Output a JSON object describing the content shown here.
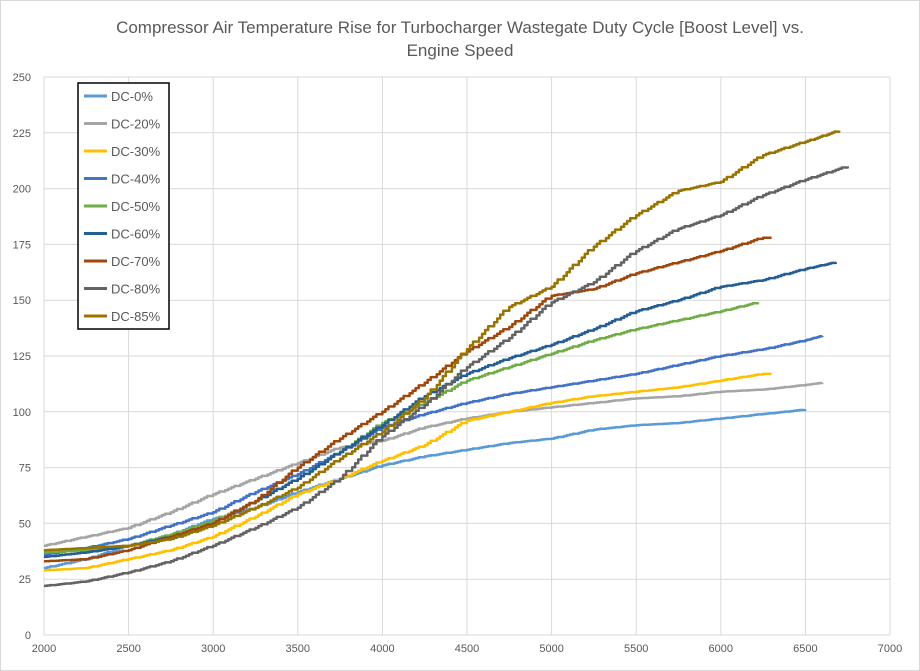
{
  "chart_data": {
    "type": "line",
    "title_lines": [
      "Compressor Air Temperature Rise for Turbocharger Wastegate Duty Cycle [Boost Level] vs.",
      "Engine Speed"
    ],
    "xlabel": "",
    "ylabel": "",
    "xlim": [
      2000,
      7000
    ],
    "ylim": [
      0,
      250
    ],
    "x_ticks": [
      2000,
      2500,
      3000,
      3500,
      4000,
      4500,
      5000,
      5500,
      6000,
      6500,
      7000
    ],
    "y_ticks": [
      0,
      25,
      50,
      75,
      100,
      125,
      150,
      175,
      200,
      225,
      250
    ],
    "grid": true,
    "legend_placement": "top-left",
    "series": [
      {
        "name": "DC-0%",
        "color": "#5B9BD5",
        "points": [
          [
            2000,
            30
          ],
          [
            2250,
            34
          ],
          [
            2500,
            40
          ],
          [
            2750,
            45
          ],
          [
            3000,
            52
          ],
          [
            3250,
            57
          ],
          [
            3500,
            64
          ],
          [
            3750,
            70
          ],
          [
            4000,
            76
          ],
          [
            4250,
            80
          ],
          [
            4500,
            83
          ],
          [
            4750,
            86
          ],
          [
            5000,
            88
          ],
          [
            5250,
            92
          ],
          [
            5500,
            94
          ],
          [
            5750,
            95
          ],
          [
            6000,
            97
          ],
          [
            6250,
            99
          ],
          [
            6500,
            101
          ]
        ]
      },
      {
        "name": "DC-20%",
        "color": "#A5A5A5",
        "points": [
          [
            2000,
            40
          ],
          [
            2250,
            44
          ],
          [
            2500,
            48
          ],
          [
            2750,
            55
          ],
          [
            3000,
            63
          ],
          [
            3250,
            70
          ],
          [
            3500,
            77
          ],
          [
            3750,
            84
          ],
          [
            4000,
            87
          ],
          [
            4250,
            93
          ],
          [
            4500,
            97
          ],
          [
            4750,
            100
          ],
          [
            5000,
            102
          ],
          [
            5250,
            104
          ],
          [
            5500,
            106
          ],
          [
            5750,
            107
          ],
          [
            6000,
            109
          ],
          [
            6250,
            110
          ],
          [
            6500,
            112
          ],
          [
            6600,
            113
          ]
        ]
      },
      {
        "name": "DC-30%",
        "color": "#FFC000",
        "points": [
          [
            2000,
            29
          ],
          [
            2250,
            30
          ],
          [
            2500,
            34
          ],
          [
            2750,
            38
          ],
          [
            3000,
            44
          ],
          [
            3250,
            53
          ],
          [
            3500,
            63
          ],
          [
            3750,
            70
          ],
          [
            4000,
            78
          ],
          [
            4250,
            85
          ],
          [
            4500,
            96
          ],
          [
            4750,
            100
          ],
          [
            5000,
            104
          ],
          [
            5250,
            107
          ],
          [
            5500,
            109
          ],
          [
            5750,
            111
          ],
          [
            6000,
            114
          ],
          [
            6250,
            117
          ],
          [
            6300,
            117
          ]
        ]
      },
      {
        "name": "DC-40%",
        "color": "#4472C4",
        "points": [
          [
            2000,
            36
          ],
          [
            2250,
            39
          ],
          [
            2500,
            43
          ],
          [
            2750,
            49
          ],
          [
            3000,
            55
          ],
          [
            3250,
            64
          ],
          [
            3500,
            72
          ],
          [
            3750,
            82
          ],
          [
            4000,
            93
          ],
          [
            4250,
            99
          ],
          [
            4500,
            104
          ],
          [
            4750,
            108
          ],
          [
            5000,
            111
          ],
          [
            5250,
            114
          ],
          [
            5500,
            117
          ],
          [
            5750,
            121
          ],
          [
            6000,
            125
          ],
          [
            6250,
            128
          ],
          [
            6500,
            132
          ],
          [
            6600,
            134
          ]
        ]
      },
      {
        "name": "DC-50%",
        "color": "#70AD47",
        "points": [
          [
            2000,
            37
          ],
          [
            2250,
            38
          ],
          [
            2500,
            40
          ],
          [
            2750,
            45
          ],
          [
            3000,
            51
          ],
          [
            3250,
            60
          ],
          [
            3500,
            70
          ],
          [
            3750,
            82
          ],
          [
            4000,
            95
          ],
          [
            4250,
            104
          ],
          [
            4500,
            114
          ],
          [
            4750,
            120
          ],
          [
            5000,
            126
          ],
          [
            5250,
            132
          ],
          [
            5500,
            137
          ],
          [
            5750,
            141
          ],
          [
            6000,
            145
          ],
          [
            6220,
            149
          ]
        ]
      },
      {
        "name": "DC-60%",
        "color": "#255E91",
        "points": [
          [
            2000,
            35
          ],
          [
            2250,
            37
          ],
          [
            2500,
            40
          ],
          [
            2750,
            44
          ],
          [
            3000,
            50
          ],
          [
            3250,
            60
          ],
          [
            3500,
            70
          ],
          [
            3750,
            82
          ],
          [
            4000,
            94
          ],
          [
            4250,
            107
          ],
          [
            4500,
            117
          ],
          [
            4750,
            124
          ],
          [
            5000,
            130
          ],
          [
            5250,
            137
          ],
          [
            5500,
            145
          ],
          [
            5750,
            150
          ],
          [
            6000,
            156
          ],
          [
            6250,
            159
          ],
          [
            6500,
            164
          ],
          [
            6680,
            167
          ]
        ]
      },
      {
        "name": "DC-70%",
        "color": "#9E480E",
        "points": [
          [
            2000,
            33
          ],
          [
            2250,
            34
          ],
          [
            2500,
            38
          ],
          [
            2750,
            44
          ],
          [
            3000,
            50
          ],
          [
            3250,
            60
          ],
          [
            3500,
            75
          ],
          [
            3750,
            88
          ],
          [
            4000,
            100
          ],
          [
            4250,
            113
          ],
          [
            4500,
            127
          ],
          [
            4750,
            138
          ],
          [
            5000,
            152
          ],
          [
            5250,
            155
          ],
          [
            5500,
            162
          ],
          [
            5750,
            167
          ],
          [
            6000,
            172
          ],
          [
            6250,
            178
          ],
          [
            6300,
            178
          ]
        ]
      },
      {
        "name": "DC-80%",
        "color": "#636363",
        "points": [
          [
            2000,
            22
          ],
          [
            2250,
            24
          ],
          [
            2500,
            28
          ],
          [
            2750,
            33
          ],
          [
            3000,
            40
          ],
          [
            3250,
            48
          ],
          [
            3500,
            57
          ],
          [
            3750,
            70
          ],
          [
            4000,
            89
          ],
          [
            4250,
            103
          ],
          [
            4500,
            120
          ],
          [
            4750,
            133
          ],
          [
            5000,
            149
          ],
          [
            5250,
            158
          ],
          [
            5500,
            172
          ],
          [
            5750,
            182
          ],
          [
            6000,
            188
          ],
          [
            6250,
            197
          ],
          [
            6500,
            204
          ],
          [
            6750,
            210
          ]
        ]
      },
      {
        "name": "DC-85%",
        "color": "#997300",
        "points": [
          [
            2000,
            38
          ],
          [
            2250,
            39
          ],
          [
            2500,
            40
          ],
          [
            2750,
            43
          ],
          [
            3000,
            49
          ],
          [
            3250,
            57
          ],
          [
            3500,
            66
          ],
          [
            3750,
            79
          ],
          [
            4000,
            91
          ],
          [
            4250,
            106
          ],
          [
            4500,
            128
          ],
          [
            4750,
            147
          ],
          [
            5000,
            156
          ],
          [
            5250,
            174
          ],
          [
            5500,
            188
          ],
          [
            5750,
            199
          ],
          [
            6000,
            203
          ],
          [
            6250,
            215
          ],
          [
            6500,
            221
          ],
          [
            6700,
            226
          ]
        ]
      }
    ]
  }
}
